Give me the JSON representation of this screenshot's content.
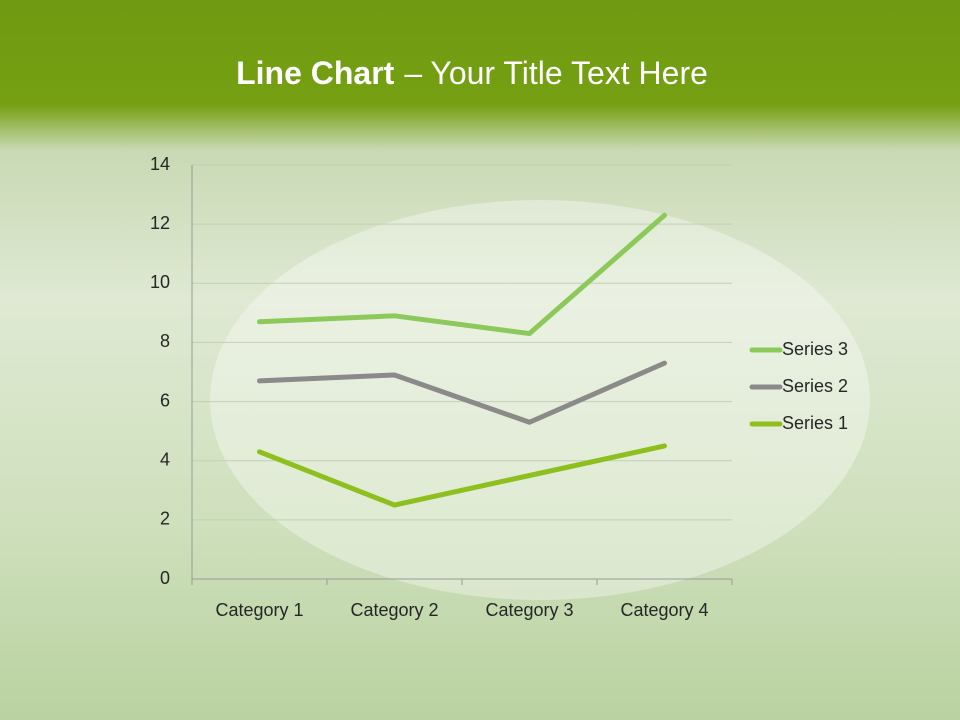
{
  "chart_data": {
    "type": "line",
    "stacked": true,
    "title": [
      "Line Chart",
      "– Your Title Text Here"
    ],
    "categories": [
      "Category 1",
      "Category 2",
      "Category 3",
      "Category 4"
    ],
    "series": [
      {
        "name": "Series 1",
        "color": "#8dbf1e",
        "values": [
          4.3,
          2.5,
          3.5,
          4.5
        ]
      },
      {
        "name": "Series 2",
        "color": "#8a8a8a",
        "values": [
          2.4,
          4.4,
          1.8,
          2.8
        ]
      },
      {
        "name": "Series 3",
        "color": "#8cc85a",
        "values": [
          2,
          2,
          3,
          5
        ]
      }
    ],
    "ylim": [
      0,
      14
    ],
    "yticks": [
      0,
      2,
      4,
      6,
      8,
      10,
      12,
      14
    ],
    "grid": true,
    "legend": "right"
  }
}
